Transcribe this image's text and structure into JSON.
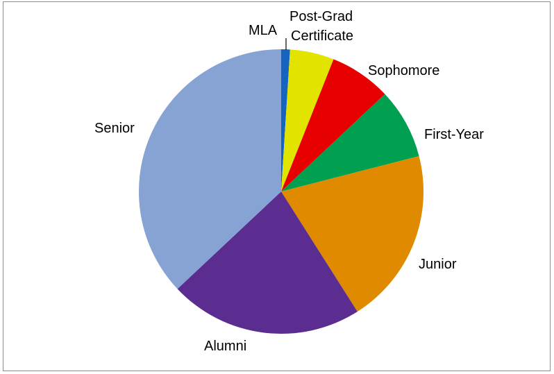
{
  "chart_data": {
    "type": "pie",
    "title": "",
    "slices": [
      {
        "label": "MLA",
        "value": 1.0,
        "color": "#1565C0"
      },
      {
        "label": "Post-Grad Certificate",
        "value": 5.0,
        "color": "#E3E300"
      },
      {
        "label": "Sophomore",
        "value": 7.0,
        "color": "#E60000"
      },
      {
        "label": "First-Year",
        "value": 8.0,
        "color": "#00A050"
      },
      {
        "label": "Junior",
        "value": 20.0,
        "color": "#E08A00"
      },
      {
        "label": "Alumni",
        "value": 22.0,
        "color": "#5C2D91"
      },
      {
        "label": "Senior",
        "value": 37.0,
        "color": "#86A3D4"
      }
    ],
    "start_angle_deg": 0,
    "direction": "clockwise",
    "labels": {
      "mla": "MLA",
      "postgrad_line1": "Post-Grad",
      "postgrad_line2": "Certificate",
      "sophomore": "Sophomore",
      "firstyear": "First-Year",
      "junior": "Junior",
      "alumni": "Alumni",
      "senior": "Senior"
    }
  }
}
